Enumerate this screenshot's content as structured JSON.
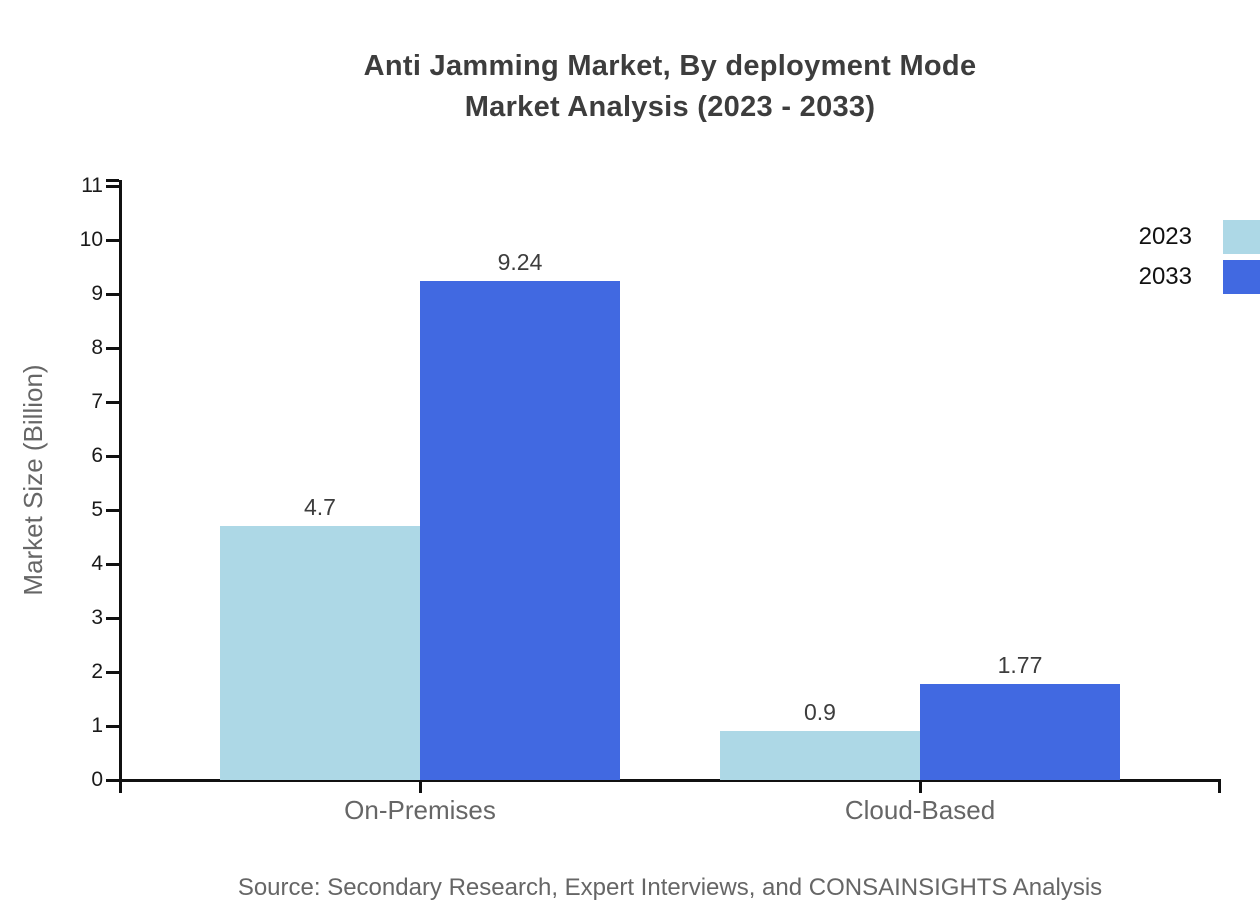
{
  "title": {
    "line1": "Anti Jamming Market, By deployment Mode",
    "line2": "Market Analysis (2023 - 2033)"
  },
  "y_axis": {
    "label": "Market Size (Billion)",
    "ticks": [
      0,
      1,
      2,
      3,
      4,
      5,
      6,
      7,
      8,
      9,
      10,
      11
    ]
  },
  "legend": [
    {
      "label": "2023",
      "color": "#ADD8E6"
    },
    {
      "label": "2033",
      "color": "#4169E1"
    }
  ],
  "source": "Source: Secondary Research, Expert Interviews, and CONSAINSIGHTS Analysis",
  "chart_data": {
    "type": "bar",
    "categories": [
      "On-Premises",
      "Cloud-Based"
    ],
    "series": [
      {
        "name": "2023",
        "color": "#ADD8E6",
        "values": [
          4.7,
          0.9
        ]
      },
      {
        "name": "2033",
        "color": "#4169E1",
        "values": [
          9.24,
          1.77
        ]
      }
    ],
    "value_labels": [
      "4.7",
      "9.24",
      "0.9",
      "1.77"
    ],
    "title": "Anti Jamming Market, By deployment Mode — Market Analysis (2023 - 2033)",
    "xlabel": "",
    "ylabel": "Market Size (Billion)",
    "ylim": [
      0,
      11
    ],
    "grid": false,
    "legend_position": "top-right",
    "axis_color": "#111111",
    "label_color": "#666666",
    "value_label_color": "#3d3d3d"
  }
}
